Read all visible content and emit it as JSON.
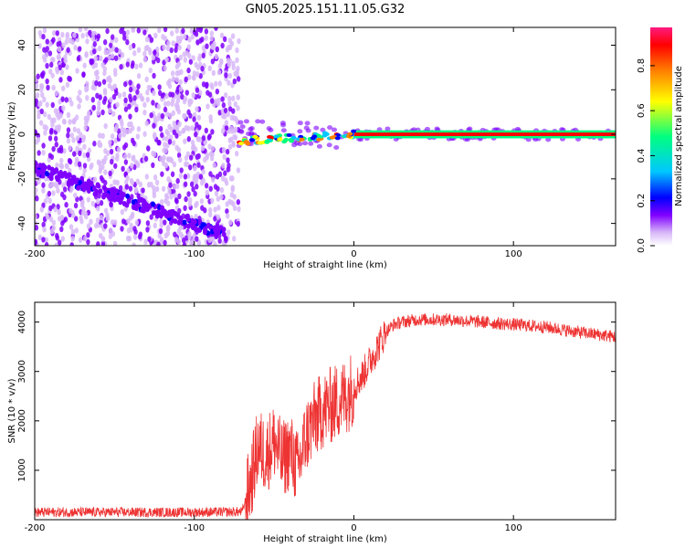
{
  "figure": {
    "title": "GN05.2025.151.11.05.G32"
  },
  "chart_data": [
    {
      "type": "heatmap",
      "title": "GN05.2025.151.11.05.G32",
      "xlabel": "Height of straight line (km)",
      "ylabel": "Frequency (Hz)",
      "xlim": [
        -200,
        164
      ],
      "ylim": [
        -50,
        48
      ],
      "xticks": [
        -200,
        -100,
        0,
        100
      ],
      "yticks": [
        -40,
        -20,
        0,
        20,
        40
      ],
      "colorbar": {
        "label": "Normalized spectral amplitude",
        "range": [
          0,
          0.97
        ],
        "ticks": [
          0.0,
          0.2,
          0.4,
          0.6,
          0.8
        ],
        "colors": [
          "#ffffff",
          "#d8b8f8",
          "#8000ff",
          "#0000ff",
          "#00c8ff",
          "#00ff80",
          "#ffff00",
          "#ff8000",
          "#ff0000",
          "#ff1a80"
        ]
      },
      "features": [
        {
          "name": "noise cloud",
          "x": [
            -200,
            -72
          ],
          "y": [
            -50,
            48
          ],
          "amplitude": 0.15
        },
        {
          "name": "descending track",
          "x": [
            -200,
            -80
          ],
          "y_start": -15,
          "y_end": -45,
          "amplitude": 0.25
        },
        {
          "name": "zero-frequency line",
          "x": [
            -73,
            164
          ],
          "y": 0,
          "amplitude": 0.9
        }
      ],
      "grid": false
    },
    {
      "type": "line",
      "xlabel": "Height of straight line (km)",
      "ylabel": "SNR (10 * v/v)",
      "xlim": [
        -200,
        164
      ],
      "ylim": [
        0,
        4400
      ],
      "xticks": [
        -200,
        -100,
        0,
        100
      ],
      "yticks": [
        1000,
        2000,
        3000,
        4000
      ],
      "color": "#ee3333",
      "series": [
        {
          "x": [
            -200,
            -150,
            -100,
            -70,
            -65,
            -60,
            -55,
            -50,
            -45,
            -40,
            -35,
            -30,
            -25,
            -20,
            -15,
            -10,
            -5,
            0,
            5,
            10,
            15,
            20,
            25,
            30,
            40,
            50,
            60,
            80,
            100,
            120,
            140,
            164
          ],
          "y": [
            150,
            150,
            150,
            160,
            700,
            1500,
            1300,
            1600,
            1200,
            1400,
            1000,
            1700,
            2000,
            2200,
            2300,
            2400,
            2500,
            2700,
            2900,
            3200,
            3500,
            3800,
            3950,
            4000,
            4050,
            4050,
            4050,
            4000,
            3950,
            3900,
            3800,
            3700
          ]
        }
      ],
      "grid": false
    }
  ]
}
